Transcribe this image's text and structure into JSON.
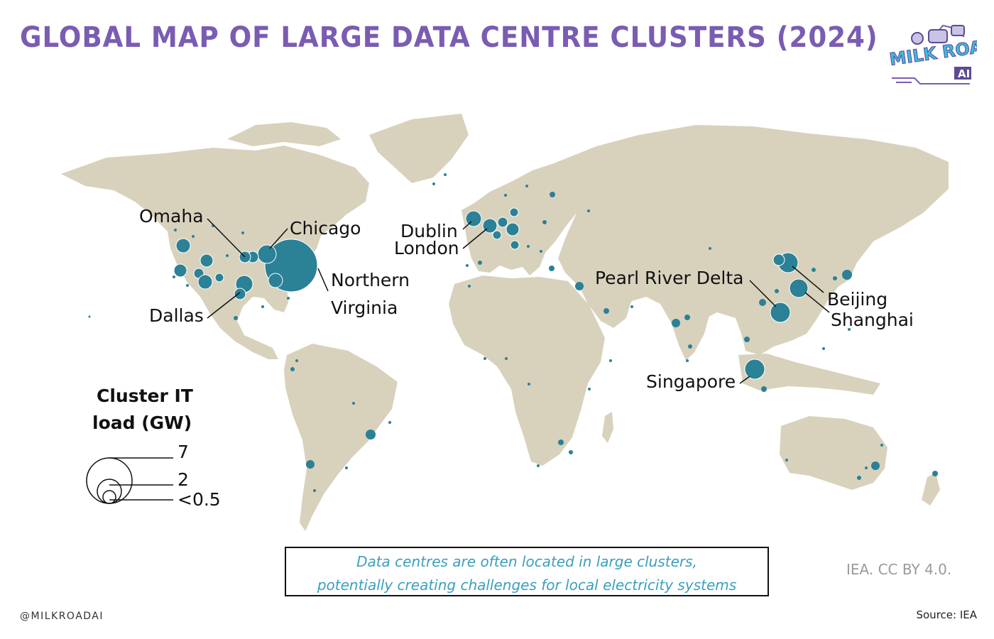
{
  "title": "GLOBAL MAP OF LARGE DATA CENTRE CLUSTERS (2024)",
  "logo": {
    "line1": "MILK ROAD",
    "line2": "AI"
  },
  "colors": {
    "title": "#7a5cb2",
    "land": "#d8d2bd",
    "bubble": "#2b8196",
    "callout_text": "#3a9fbf"
  },
  "clusters": [
    {
      "name": "Omaha",
      "label": "Omaha"
    },
    {
      "name": "Chicago",
      "label": "Chicago"
    },
    {
      "name": "Northern Virginia",
      "label_line1": "Northern",
      "label_line2": "Virginia"
    },
    {
      "name": "Dallas",
      "label": "Dallas"
    },
    {
      "name": "Dublin",
      "label": "Dublin"
    },
    {
      "name": "London",
      "label": "London"
    },
    {
      "name": "Pearl River Delta",
      "label": "Pearl River Delta"
    },
    {
      "name": "Beijing",
      "label": "Beijing"
    },
    {
      "name": "Shanghai",
      "label": "Shanghai"
    },
    {
      "name": "Singapore",
      "label": "Singapore"
    }
  ],
  "legend": {
    "title_line1": "Cluster IT",
    "title_line2": "load (GW)",
    "items": [
      {
        "label": "7",
        "value": 7
      },
      {
        "label": "2",
        "value": 2
      },
      {
        "label": "<0.5",
        "value": 0.5
      }
    ]
  },
  "callout": {
    "line1": "Data centres are often located in large clusters,",
    "line2": "potentially creating challenges for local electricity systems"
  },
  "credit": "IEA. CC BY 4.0.",
  "handle": "@MILKROADAI",
  "source": "Source: IEA"
}
